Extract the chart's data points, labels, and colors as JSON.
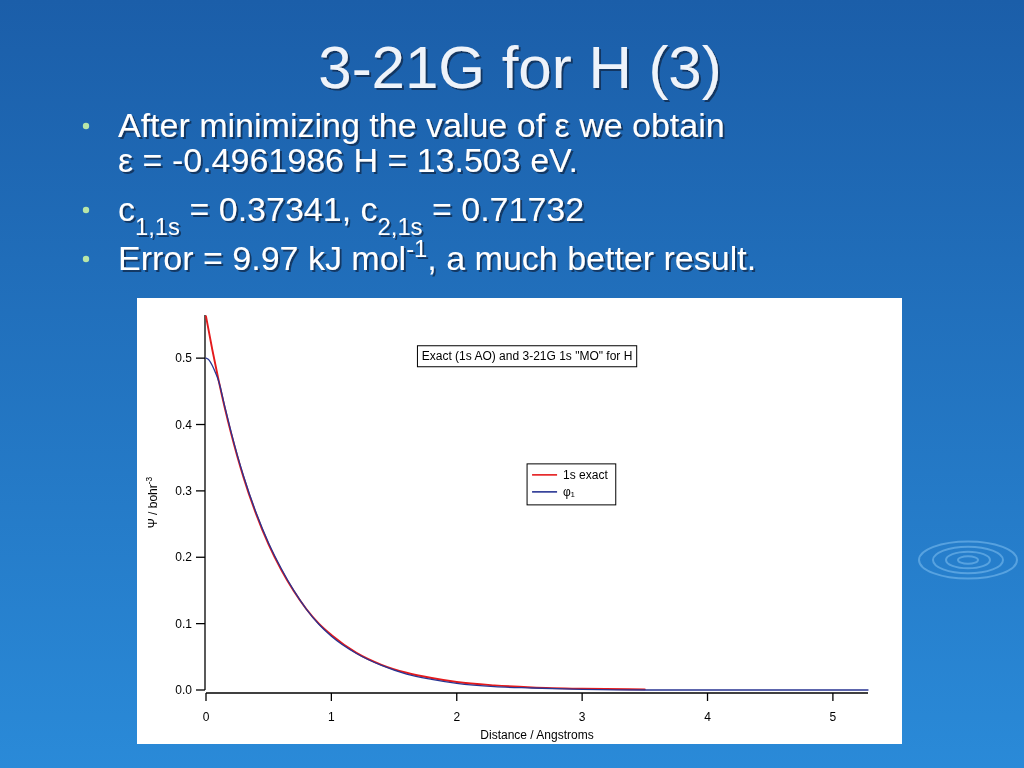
{
  "chart_data": {
    "type": "line",
    "title": "3-21G for H (3)",
    "subtitle": "Exact (1s AO) and 3-21G 1s \"MO\" for H",
    "annotations": [
      "After minimizing the value of ε we obtain\nε = -0.4961986 H = 13.503 eV.",
      "c$_{1,1s}$ = 0.37341, c$_{2,1s}$ = 0.71732",
      "Error = 9.97 kJ mol$^{-1}$, a much better result."
    ],
    "xlabel": "Distance / Angstroms",
    "ylabel": "Ψ / bohr$^{-3}$",
    "xlim": [
      0,
      5.28
    ],
    "ylim": [
      0,
      0.565
    ],
    "xticks": [
      0,
      1,
      2,
      3,
      4,
      5
    ],
    "yticks": [
      {
        "value": 0,
        "label": "0.0"
      },
      0.1,
      0.2,
      0.3,
      0.4,
      0.5
    ],
    "legend": "right",
    "series": [
      {
        "name": "1s exact",
        "color": "#e41a1c",
        "x": [
          0,
          0.05,
          0.1,
          0.15,
          0.2,
          0.3,
          0.4,
          0.5,
          0.6,
          0.7,
          0.8,
          0.9,
          1.0,
          1.2,
          1.4,
          1.6,
          1.8,
          2.0,
          2.3,
          2.6,
          3.0,
          3.5
        ],
        "values": [
          0.563,
          0.513,
          0.467,
          0.425,
          0.387,
          0.32,
          0.265,
          0.219,
          0.181,
          0.149,
          0.122,
          0.1,
          0.083,
          0.056,
          0.038,
          0.026,
          0.018,
          0.012,
          0.007,
          0.004,
          0.002,
          0.001
        ]
      },
      {
        "name": "φ₁",
        "color": "#283593",
        "x": [
          0,
          0.02,
          0.05,
          0.08,
          0.1,
          0.15,
          0.2,
          0.3,
          0.4,
          0.5,
          0.6,
          0.7,
          0.8,
          0.9,
          1.0,
          1.2,
          1.4,
          1.6,
          1.8,
          2.0,
          2.3,
          2.6,
          3.0,
          3.5,
          4.0,
          4.5,
          5.0,
          5.28
        ],
        "values": [
          0.5,
          0.498,
          0.489,
          0.476,
          0.466,
          0.427,
          0.389,
          0.322,
          0.267,
          0.221,
          0.183,
          0.15,
          0.122,
          0.099,
          0.081,
          0.055,
          0.037,
          0.024,
          0.016,
          0.01,
          0.005,
          0.003,
          0.001,
          0,
          0,
          0,
          0,
          0
        ]
      }
    ]
  }
}
